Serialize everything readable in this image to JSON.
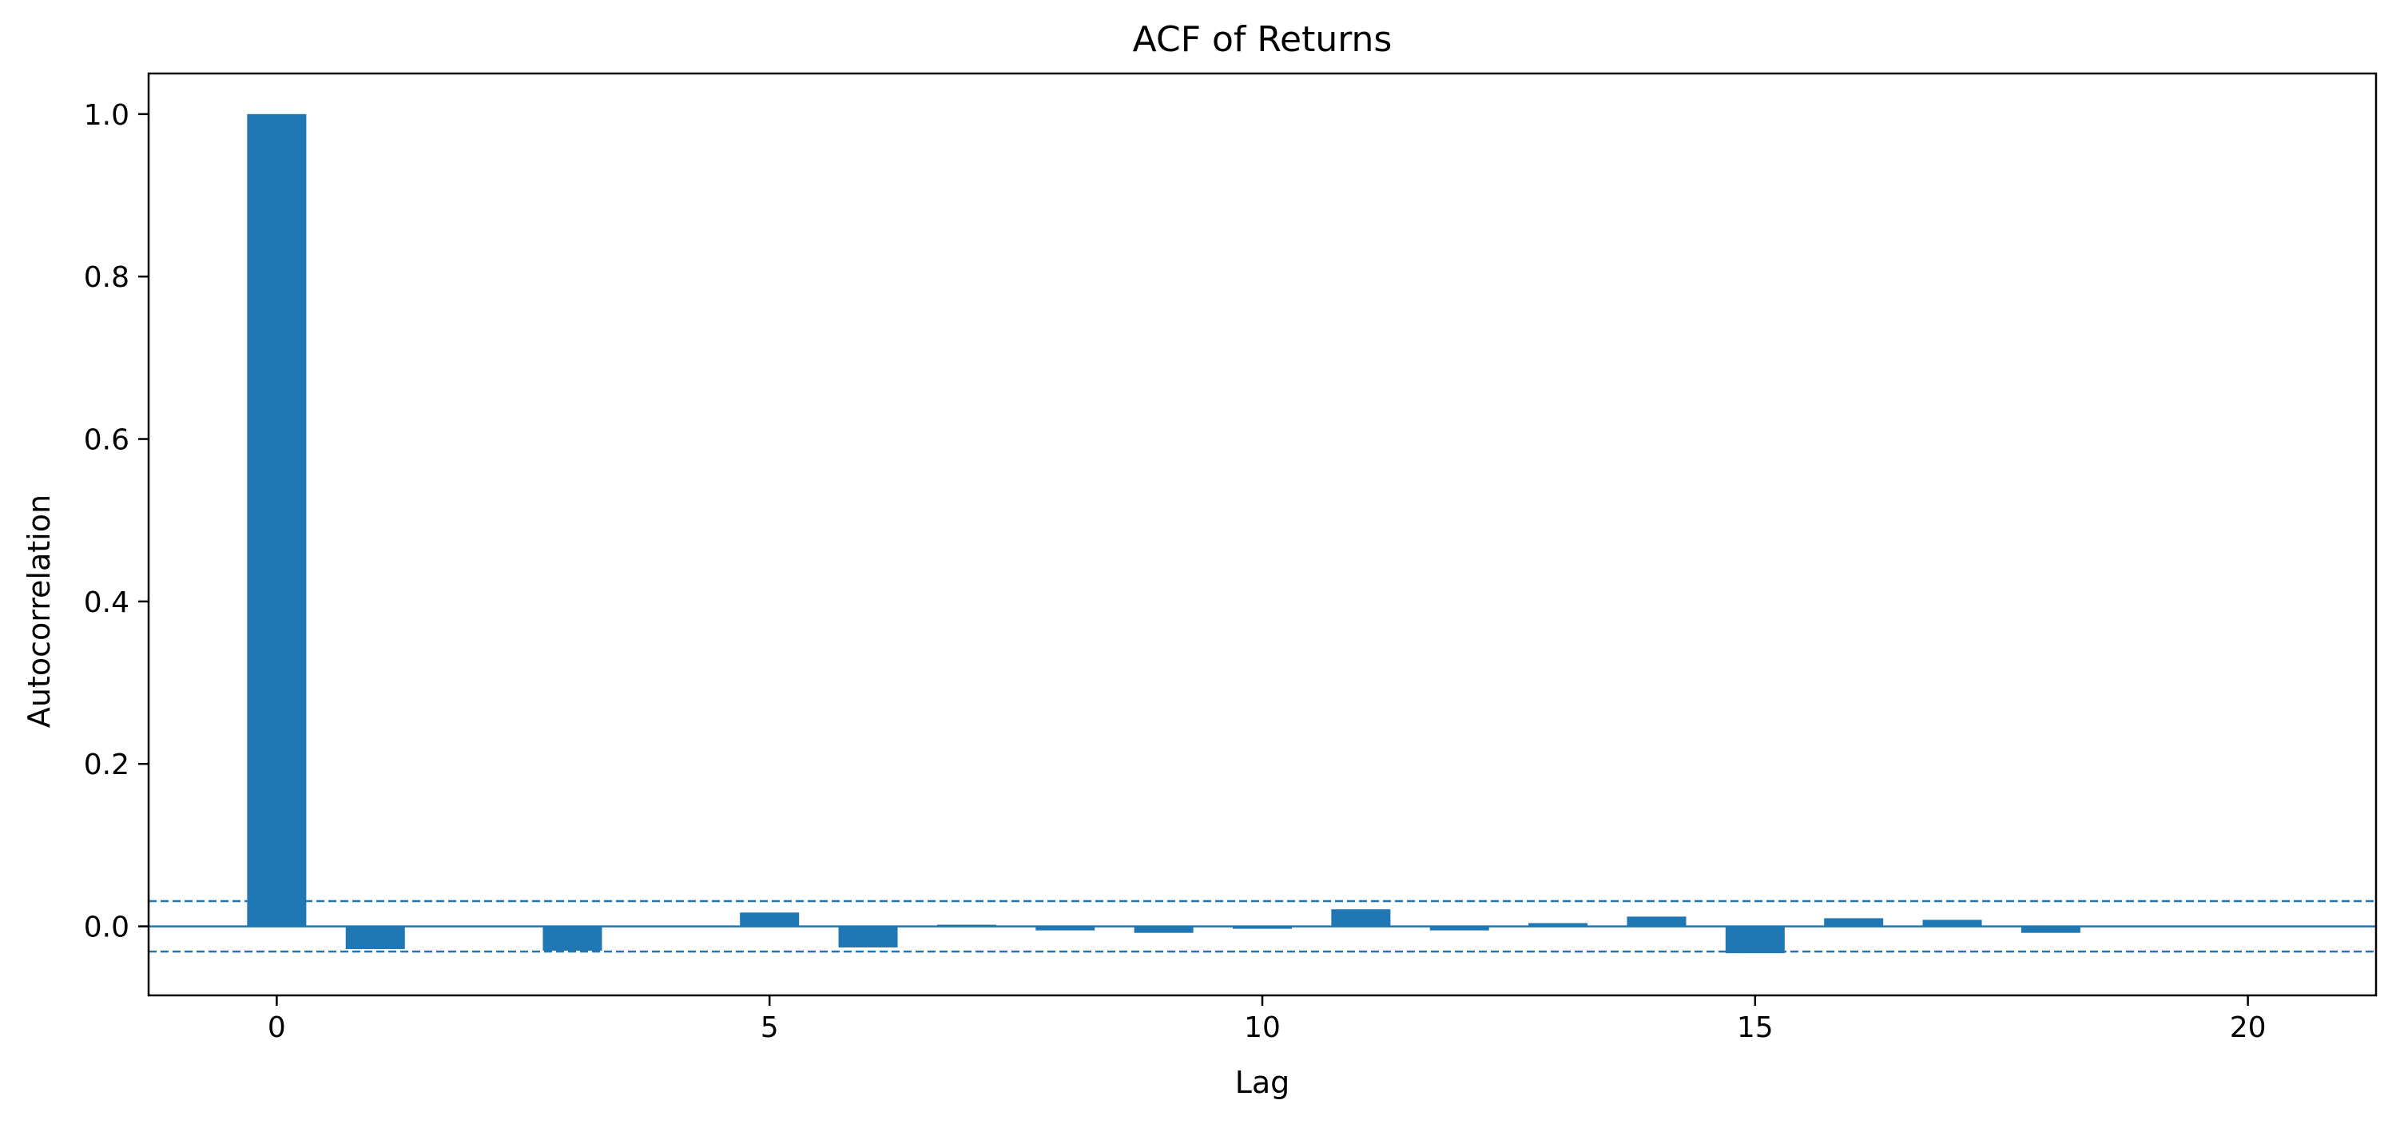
{
  "chart_data": {
    "type": "bar",
    "title": "ACF of Returns",
    "xlabel": "Lag",
    "ylabel": "Autocorrelation",
    "x": [
      0,
      1,
      2,
      3,
      4,
      5,
      6,
      7,
      8,
      9,
      10,
      11,
      12,
      13,
      14,
      15,
      16,
      17,
      18,
      19,
      20
    ],
    "values": [
      1.0,
      -0.028,
      0.0,
      -0.03,
      0.0,
      0.017,
      -0.026,
      0.002,
      -0.005,
      -0.008,
      -0.003,
      0.021,
      -0.005,
      0.004,
      0.012,
      -0.033,
      0.01,
      0.008,
      -0.008,
      0.0,
      0.0
    ],
    "xlim": [
      -1.3,
      21.3
    ],
    "ylim": [
      -0.085,
      1.05
    ],
    "xticks": [
      0,
      5,
      10,
      15,
      20
    ],
    "xtick_labels": [
      "0",
      "5",
      "10",
      "15",
      "20"
    ],
    "yticks": [
      0.0,
      0.2,
      0.4,
      0.6,
      0.8,
      1.0
    ],
    "ytick_labels": [
      "0.0",
      "0.2",
      "0.4",
      "0.6",
      "0.8",
      "1.0"
    ],
    "confidence_bounds": [
      0.031,
      -0.031
    ],
    "bar_width": 0.6,
    "grid": false,
    "colors": {
      "bar": "#1f77b4",
      "zero_line": "#1f77b4",
      "confidence_line": "#1f77b4",
      "axes": "#000000"
    }
  }
}
